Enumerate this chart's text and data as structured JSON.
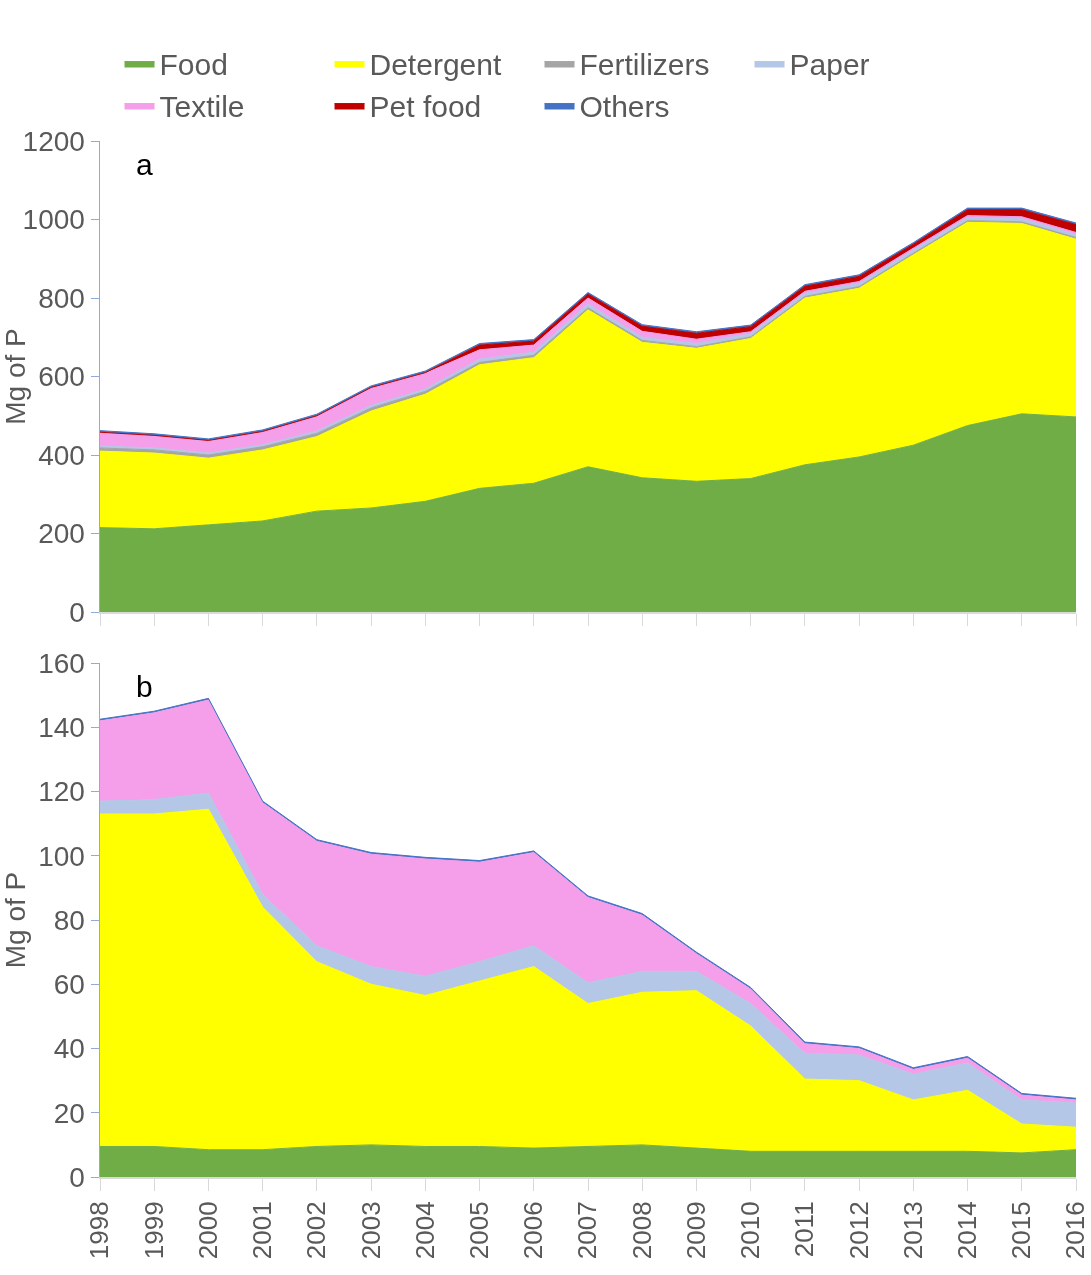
{
  "chart_data": [
    {
      "type": "area",
      "stacked": true,
      "ylabel": "Mg of P",
      "annotations": [
        "a"
      ],
      "legend": "top",
      "tick_labels": "y",
      "grid": false,
      "categories": [
        "1998",
        "1999",
        "2000",
        "2001",
        "2002",
        "2003",
        "2004",
        "2005",
        "2006",
        "2007",
        "2008",
        "2009",
        "2010",
        "2011",
        "2012",
        "2013",
        "2014",
        "2015",
        "2016"
      ],
      "ylim": [
        0,
        1200
      ],
      "yticks": [
        0,
        200,
        400,
        600,
        800,
        1000,
        1200
      ],
      "series": [
        {
          "name": "Food",
          "color": "#70ad47",
          "values": [
            215,
            212,
            222,
            232,
            257,
            265,
            282,
            315,
            328,
            370,
            342,
            333,
            340,
            375,
            395,
            425,
            475,
            505,
            497
          ]
        },
        {
          "name": "Detergent",
          "color": "#ffff00",
          "values": [
            195,
            193,
            170,
            181,
            190,
            247,
            273,
            315,
            320,
            400,
            345,
            339,
            357,
            425,
            430,
            485,
            518,
            485,
            453
          ]
        },
        {
          "name": "Fertilizers",
          "color": "#a5a5a5",
          "values": [
            8,
            8,
            8,
            8,
            8,
            8,
            7,
            6,
            6,
            5,
            5,
            4,
            4,
            4,
            4,
            4,
            4,
            4,
            4
          ]
        },
        {
          "name": "Paper",
          "color": "#b4c7e7",
          "values": [
            5,
            5,
            5,
            5,
            6,
            6,
            6,
            8,
            8,
            10,
            8,
            8,
            8,
            8,
            8,
            8,
            8,
            8,
            8
          ]
        },
        {
          "name": "Textile",
          "color": "#f59feb",
          "values": [
            35,
            32,
            32,
            34,
            39,
            46,
            40,
            24,
            18,
            15,
            15,
            11,
            5,
            5,
            5,
            5,
            5,
            5,
            5
          ]
        },
        {
          "name": "Pet food",
          "color": "#c00000",
          "values": [
            0,
            0,
            0,
            0,
            0,
            0,
            2,
            12,
            10,
            10,
            13,
            15,
            13,
            13,
            13,
            10,
            15,
            18,
            20
          ]
        },
        {
          "name": "Others",
          "color": "#4472c4",
          "values": [
            4,
            4,
            4,
            4,
            4,
            4,
            4,
            4,
            4,
            4,
            4,
            4,
            4,
            4,
            4,
            4,
            4,
            4,
            4
          ]
        }
      ]
    },
    {
      "type": "area",
      "stacked": true,
      "ylabel": "Mg of P",
      "annotations": [
        "b"
      ],
      "grid": false,
      "categories": [
        "1998",
        "1999",
        "2000",
        "2001",
        "2002",
        "2003",
        "2004",
        "2005",
        "2006",
        "2007",
        "2008",
        "2009",
        "2010",
        "2011",
        "2012",
        "2013",
        "2014",
        "2015",
        "2016"
      ],
      "ylim": [
        0,
        160
      ],
      "yticks": [
        0,
        20,
        40,
        60,
        80,
        100,
        120,
        140,
        160
      ],
      "series": [
        {
          "color": "#70ad47",
          "values": [
            9.5,
            9.5,
            8.5,
            8.5,
            9.5,
            10,
            9.5,
            9.5,
            9,
            9.5,
            10,
            9,
            8,
            8,
            8,
            8,
            8,
            7.5,
            8.5
          ]
        },
        {
          "color": "#ffff00",
          "values": [
            103.5,
            103.5,
            106,
            75.5,
            57.5,
            50,
            47,
            51.5,
            56.5,
            44.5,
            47.5,
            49,
            39,
            22.5,
            22,
            16,
            19,
            9,
            7
          ]
        },
        {
          "color": "#b4c7e7",
          "values": [
            4,
            4.5,
            5,
            4,
            5,
            5.5,
            6,
            6,
            6.5,
            6.5,
            6.5,
            6,
            7,
            8,
            8,
            8,
            8.5,
            7.5,
            7.5
          ]
        },
        {
          "color": "#f59feb",
          "values": [
            25,
            27,
            29,
            28.5,
            32.5,
            35,
            36.5,
            31,
            29,
            26.5,
            17.5,
            5.5,
            4.5,
            3,
            2,
            1.5,
            1.5,
            1.5,
            1
          ]
        },
        {
          "color": "#4472c4",
          "values": [
            0.5,
            0.5,
            0.5,
            0.5,
            0.5,
            0.5,
            0.5,
            0.5,
            0.5,
            0.5,
            0.5,
            0.5,
            0.5,
            0.5,
            0.5,
            0.5,
            0.5,
            0.5,
            0.5
          ]
        }
      ]
    }
  ]
}
